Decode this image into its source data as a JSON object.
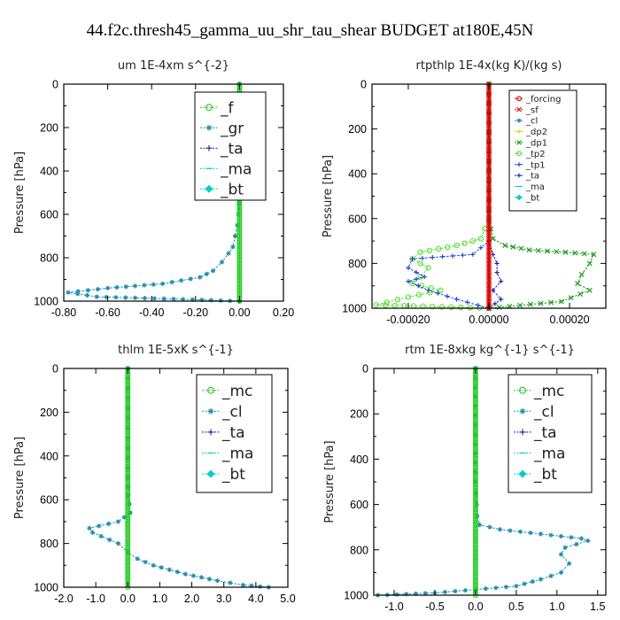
{
  "figure_title": "44.f2c.thresh45_gamma_uu_shr_tau_shear  BUDGET at180E,45N",
  "colors": {
    "green": "#22cc22",
    "blue": "#1a3fd6",
    "darkblue": "#1a1aa8",
    "cyan": "#00cccc",
    "dkcyan": "#1f8fb0",
    "red": "#dd0000",
    "orange": "#ff9900",
    "yellow": "#e6d000",
    "dkgreen": "#119911",
    "ltgreen": "#55dd33"
  },
  "chart_data": [
    {
      "type": "line",
      "title": "um   1E-4xm s^{-2}",
      "ylabel": "Pressure [hPa]",
      "xlim": [
        -0.8,
        0.2
      ],
      "ylim": [
        1000,
        0
      ],
      "xticks": [
        -0.8,
        -0.6,
        -0.4,
        -0.2,
        0.0,
        0.2
      ],
      "xtick_labels": [
        "-0.80",
        "-0.60",
        "-0.40",
        "-0.20",
        "0.00",
        "0.20"
      ],
      "yticks": [
        0,
        200,
        400,
        600,
        800,
        1000
      ],
      "ytick_labels": [
        "0",
        "200",
        "400",
        "600",
        "800",
        "1000"
      ],
      "legend_placement": "top-right",
      "legend": [
        "_f",
        "_gr",
        "_ta",
        "_ma",
        "_bt"
      ],
      "series": [
        {
          "name": "_gr",
          "color": "dkcyan",
          "marker": "star",
          "x": [
            0.0,
            0.0,
            0.0,
            -0.005,
            -0.01,
            -0.02,
            -0.03,
            -0.05,
            -0.08,
            -0.12,
            -0.18,
            -0.35,
            -0.6,
            -0.78,
            -0.65,
            -0.3,
            0.0
          ],
          "y": [
            0,
            300,
            500,
            600,
            650,
            700,
            750,
            780,
            820,
            860,
            890,
            920,
            940,
            960,
            980,
            990,
            1000
          ]
        },
        {
          "name": "_f",
          "color": "green",
          "marker": "circle",
          "x": [
            0.0,
            0.0
          ],
          "y": [
            0,
            1000
          ]
        }
      ]
    },
    {
      "type": "line",
      "title": "rtpthlp   1E-4x(kg K)/(kg s)",
      "ylabel": "Pressure [hPa]",
      "xlim": [
        -0.00029,
        0.00029
      ],
      "ylim": [
        1000,
        0
      ],
      "xticks": [
        -0.0002,
        0.0,
        0.0002
      ],
      "xtick_labels": [
        "-0.00020",
        "0.00000",
        "0.00020"
      ],
      "yticks": [
        0,
        200,
        400,
        600,
        800,
        1000
      ],
      "ytick_labels": [
        "0",
        "200",
        "400",
        "600",
        "800",
        "1000"
      ],
      "legend_placement": "top-right",
      "legend": [
        "_forcing",
        "_sf",
        "_cl",
        "_dp2",
        "_dp1",
        "_tp2",
        "_tp1",
        "_ta",
        "_ma",
        "_bt"
      ],
      "series": [
        {
          "name": "_dp1",
          "color": "dkgreen",
          "marker": "x",
          "x": [
            0.0,
            0.0,
            1e-05,
            4e-05,
            0.0001,
            0.00019,
            0.00026,
            0.00025,
            0.00023,
            0.00022,
            0.00025,
            0.00018,
            0.0
          ],
          "y": [
            0,
            600,
            690,
            720,
            740,
            750,
            760,
            800,
            850,
            890,
            920,
            970,
            1000
          ]
        },
        {
          "name": "_tp2",
          "color": "ltgreen",
          "marker": "circle",
          "x": [
            0.0,
            0.0,
            -2e-05,
            -8e-05,
            -0.00017,
            -0.00019,
            -0.00015,
            -0.00017,
            -0.00019,
            -0.00012,
            -0.0002,
            -0.00028,
            0.0
          ],
          "y": [
            0,
            600,
            690,
            720,
            750,
            780,
            820,
            860,
            890,
            920,
            950,
            985,
            1000
          ]
        },
        {
          "name": "_tp1",
          "color": "blue",
          "marker": "plus",
          "x": [
            0.0,
            0.0,
            -4e-05,
            -0.00019,
            -0.0002,
            -0.00016,
            -0.0002,
            -0.00015,
            -8e-05,
            0.0
          ],
          "y": [
            0,
            700,
            760,
            780,
            820,
            860,
            880,
            920,
            960,
            1000
          ]
        },
        {
          "name": "_ta",
          "color": "darkblue",
          "marker": "plus",
          "x": [
            0.0,
            0.0,
            1e-05,
            2e-05,
            2e-05,
            3e-05,
            1e-05,
            3e-05,
            0.0
          ],
          "y": [
            0,
            700,
            760,
            800,
            840,
            880,
            920,
            960,
            1000
          ]
        },
        {
          "name": "_sf",
          "color": "red",
          "marker": "x",
          "x": [
            0.0,
            0.0
          ],
          "y": [
            0,
            1000
          ]
        }
      ]
    },
    {
      "type": "line",
      "title": "thlm   1E-5xK s^{-1}",
      "ylabel": "Pressure [hPa]",
      "xlim": [
        -2.0,
        5.0
      ],
      "ylim": [
        1000,
        0
      ],
      "xticks": [
        -2.0,
        -1.0,
        0.0,
        1.0,
        2.0,
        3.0,
        4.0,
        5.0
      ],
      "xtick_labels": [
        "-2.0",
        "-1.0",
        "0.0",
        "1.0",
        "2.0",
        "3.0",
        "4.0",
        "5.0"
      ],
      "yticks": [
        0,
        200,
        400,
        600,
        800,
        1000
      ],
      "ytick_labels": [
        "0",
        "200",
        "400",
        "600",
        "800",
        "1000"
      ],
      "legend_placement": "top-right",
      "legend": [
        "_mc",
        "_cl",
        "_ta",
        "_ma",
        "_bt"
      ],
      "series": [
        {
          "name": "_cl",
          "color": "dkcyan",
          "marker": "star",
          "x": [
            0.0,
            0.0,
            0.02,
            0.05,
            0.08,
            -0.3,
            -1.2,
            -1.1,
            -0.3,
            0.0,
            0.3,
            0.8,
            1.3,
            1.8,
            2.3,
            2.8,
            3.2,
            3.6,
            4.4
          ],
          "y": [
            0,
            500,
            580,
            620,
            660,
            700,
            730,
            750,
            800,
            840,
            870,
            900,
            920,
            940,
            955,
            970,
            980,
            990,
            1000
          ]
        },
        {
          "name": "_mc",
          "color": "green",
          "marker": "circle",
          "x": [
            0.0,
            0.0
          ],
          "y": [
            0,
            1000
          ]
        }
      ]
    },
    {
      "type": "line",
      "title": "rtm   1E-8xkg kg^{-1} s^{-1}",
      "ylabel": "Pressure [hPa]",
      "xlim": [
        -1.25,
        1.6
      ],
      "ylim": [
        1000,
        0
      ],
      "xticks": [
        -1.0,
        -0.5,
        0.0,
        0.5,
        1.0,
        1.5
      ],
      "xtick_labels": [
        "-1.0",
        "-0.5",
        "0.0",
        "0.5",
        "1.0",
        "1.5"
      ],
      "yticks": [
        0,
        200,
        400,
        600,
        800,
        1000
      ],
      "ytick_labels": [
        "0",
        "200",
        "400",
        "600",
        "800",
        "1000"
      ],
      "legend_placement": "top-right",
      "legend": [
        "_mc",
        "_cl",
        "_ta",
        "_ma",
        "_bt"
      ],
      "series": [
        {
          "name": "_cl",
          "color": "dkcyan",
          "marker": "star",
          "x": [
            0.0,
            0.0,
            0.02,
            0.05,
            0.3,
            0.8,
            1.3,
            1.38,
            1.1,
            1.05,
            1.15,
            1.05,
            0.8,
            0.5,
            0.0,
            -0.5,
            -1.2
          ],
          "y": [
            0,
            500,
            650,
            690,
            710,
            730,
            750,
            760,
            790,
            820,
            860,
            900,
            930,
            960,
            975,
            990,
            1000
          ]
        },
        {
          "name": "_mc",
          "color": "green",
          "marker": "circle",
          "x": [
            0.0,
            0.0
          ],
          "y": [
            0,
            1000
          ]
        }
      ]
    }
  ]
}
